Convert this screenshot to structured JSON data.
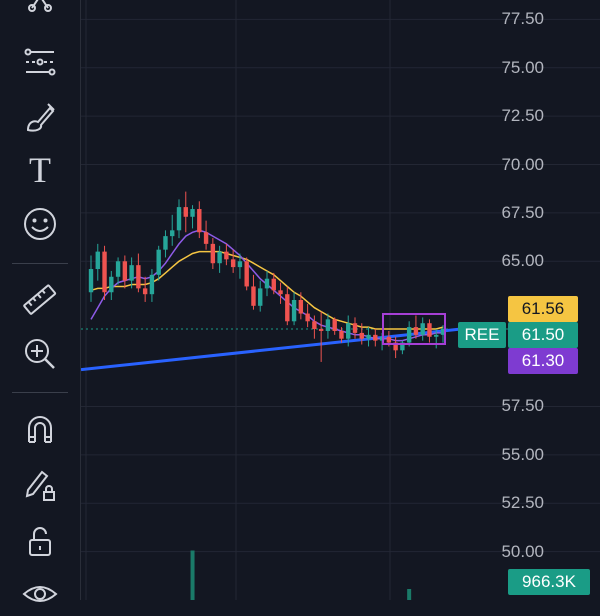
{
  "toolbar": {
    "items": [
      {
        "name": "trend-line-tool-icon"
      },
      {
        "name": "fib-retracement-tool-icon"
      },
      {
        "name": "brush-tool-icon"
      },
      {
        "name": "text-tool-icon",
        "glyph": "T"
      },
      {
        "name": "emoji-tool-icon"
      },
      {
        "name": "measure-ruler-icon"
      },
      {
        "name": "zoom-in-icon"
      },
      {
        "name": "magnet-icon"
      },
      {
        "name": "lock-drawings-icon"
      },
      {
        "name": "unlock-icon"
      },
      {
        "name": "visibility-eye-icon"
      }
    ]
  },
  "chart_data": {
    "type": "candlestick",
    "symbol": "REE",
    "price_axis": [
      "77.50",
      "75.00",
      "72.50",
      "70.00",
      "67.50",
      "65.00",
      "57.50",
      "55.00",
      "52.50",
      "50.00"
    ],
    "ylim": [
      47.5,
      78.5
    ],
    "tags": {
      "ma_slow": {
        "value": "61.56",
        "color": "#f5c542"
      },
      "last": {
        "symbol": "REE",
        "value": "61.50",
        "color": "#1a9c86"
      },
      "ma_fast": {
        "value": "61.30",
        "color": "#7e3bd1"
      },
      "volume": {
        "value": "966.3K",
        "color": "#1a9c86"
      }
    },
    "trendline": {
      "start": 59.4,
      "end": 61.5,
      "color": "#2962ff"
    },
    "candles": [
      [
        63.4,
        65.3,
        62.9,
        64.6
      ],
      [
        64.6,
        65.9,
        64.0,
        65.5
      ],
      [
        65.5,
        65.8,
        63.0,
        63.4
      ],
      [
        63.4,
        64.5,
        63.0,
        64.2
      ],
      [
        64.2,
        65.2,
        63.8,
        65.0
      ],
      [
        65.0,
        65.3,
        63.6,
        64.0
      ],
      [
        64.0,
        65.2,
        63.6,
        64.8
      ],
      [
        64.8,
        65.4,
        63.4,
        63.6
      ],
      [
        63.6,
        64.2,
        62.9,
        63.3
      ],
      [
        63.3,
        64.6,
        62.9,
        64.3
      ],
      [
        64.3,
        65.8,
        64.0,
        65.6
      ],
      [
        65.6,
        66.6,
        65.2,
        66.3
      ],
      [
        66.3,
        67.4,
        65.8,
        66.6
      ],
      [
        66.6,
        68.2,
        66.2,
        67.8
      ],
      [
        67.8,
        68.6,
        66.5,
        67.3
      ],
      [
        67.3,
        67.9,
        66.7,
        67.7
      ],
      [
        67.7,
        68.1,
        66.2,
        66.5
      ],
      [
        66.5,
        67.1,
        65.6,
        65.9
      ],
      [
        65.9,
        66.2,
        64.6,
        64.9
      ],
      [
        64.9,
        65.8,
        64.4,
        65.5
      ],
      [
        65.5,
        65.9,
        64.8,
        65.1
      ],
      [
        65.1,
        65.6,
        64.4,
        64.7
      ],
      [
        64.7,
        65.4,
        64.1,
        65.0
      ],
      [
        65.0,
        65.2,
        63.5,
        63.7
      ],
      [
        63.7,
        64.3,
        62.5,
        62.7
      ],
      [
        62.7,
        64.0,
        62.4,
        63.6
      ],
      [
        63.6,
        64.5,
        63.2,
        64.1
      ],
      [
        64.1,
        64.4,
        63.3,
        63.5
      ],
      [
        63.5,
        63.9,
        62.8,
        63.3
      ],
      [
        63.3,
        63.7,
        61.7,
        61.9
      ],
      [
        61.9,
        63.4,
        61.7,
        63.0
      ],
      [
        63.0,
        63.4,
        62.0,
        62.3
      ],
      [
        62.3,
        62.8,
        61.6,
        61.9
      ],
      [
        61.9,
        62.2,
        61.0,
        61.5
      ],
      [
        61.5,
        62.4,
        59.8,
        61.4
      ],
      [
        61.4,
        62.3,
        61.0,
        62.0
      ],
      [
        62.0,
        62.1,
        61.2,
        61.4
      ],
      [
        61.4,
        61.6,
        60.8,
        61.0
      ],
      [
        61.0,
        62.2,
        60.6,
        61.8
      ],
      [
        61.8,
        62.1,
        61.0,
        61.3
      ],
      [
        61.3,
        61.8,
        60.7,
        61.0
      ],
      [
        61.0,
        61.6,
        60.6,
        61.2
      ],
      [
        61.2,
        61.5,
        60.6,
        60.9
      ],
      [
        60.9,
        61.3,
        60.4,
        61.1
      ],
      [
        61.1,
        61.4,
        60.6,
        60.8
      ],
      [
        60.8,
        61.1,
        60.0,
        60.4
      ],
      [
        60.4,
        60.9,
        60.2,
        60.8
      ],
      [
        60.8,
        61.9,
        60.6,
        61.6
      ],
      [
        61.6,
        62.2,
        61.0,
        61.2
      ],
      [
        61.2,
        62.1,
        60.9,
        61.8
      ],
      [
        61.8,
        62.0,
        60.8,
        61.1
      ],
      [
        61.1,
        61.5,
        60.5,
        61.2
      ],
      [
        61.2,
        61.7,
        60.8,
        61.5
      ]
    ],
    "ma_fast": [
      62.0,
      62.6,
      63.2,
      63.6,
      63.9,
      64.0,
      64.1,
      64.2,
      64.1,
      64.2,
      64.5,
      64.9,
      65.4,
      65.9,
      66.3,
      66.5,
      66.6,
      66.5,
      66.3,
      66.1,
      65.9,
      65.6,
      65.3,
      64.9,
      64.5,
      64.1,
      63.8,
      63.5,
      63.2,
      62.9,
      62.6,
      62.4,
      62.2,
      61.9,
      61.7,
      61.6,
      61.5,
      61.4,
      61.3,
      61.2,
      61.2,
      61.1,
      61.0,
      61.0,
      61.0,
      60.9,
      60.9,
      61.0,
      61.1,
      61.2,
      61.2,
      61.3,
      61.3
    ],
    "ma_slow": [
      63.5,
      63.6,
      63.6,
      63.7,
      63.7,
      63.7,
      63.8,
      63.8,
      63.8,
      63.9,
      64.1,
      64.4,
      64.7,
      65.0,
      65.2,
      65.4,
      65.5,
      65.5,
      65.5,
      65.5,
      65.4,
      65.3,
      65.2,
      65.1,
      64.9,
      64.7,
      64.5,
      64.3,
      64.0,
      63.7,
      63.4,
      63.2,
      62.9,
      62.6,
      62.4,
      62.2,
      62.0,
      61.9,
      61.8,
      61.7,
      61.6,
      61.6,
      61.5,
      61.5,
      61.5,
      61.5,
      61.5,
      61.5,
      61.5,
      61.5,
      61.5,
      61.5,
      61.6
    ],
    "volume": [
      0,
      0,
      0,
      0,
      0,
      0,
      0,
      0,
      0,
      0,
      0,
      0,
      0,
      0,
      0,
      0.9,
      0,
      0,
      0,
      0,
      0,
      0,
      0,
      0,
      0,
      0,
      0,
      0,
      0,
      0,
      0,
      0,
      0,
      0,
      0,
      0,
      0,
      0,
      0,
      0,
      0,
      0,
      0,
      0,
      0,
      0,
      0,
      0.2,
      0,
      0,
      0,
      0,
      0
    ]
  }
}
